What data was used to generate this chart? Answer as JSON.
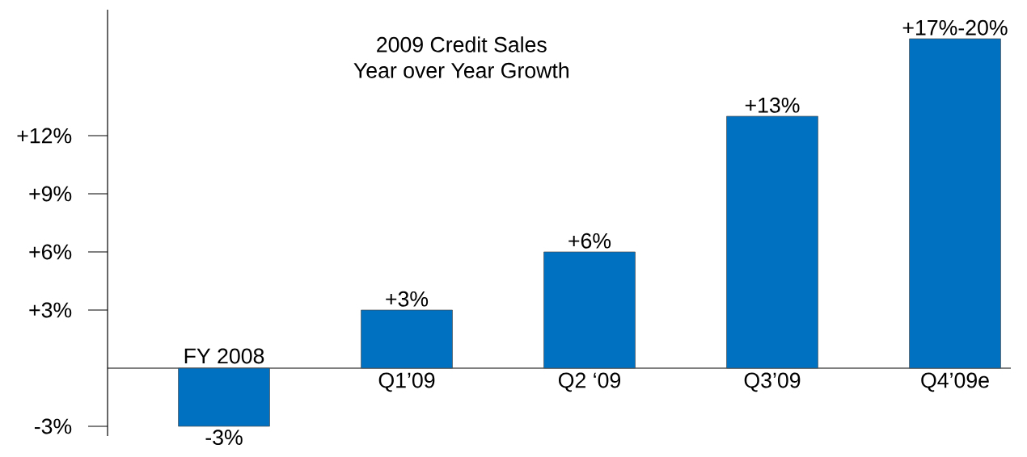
{
  "chart_data": {
    "type": "bar",
    "title": "2009 Credit Sales",
    "subtitle": "Year over Year Growth",
    "categories": [
      "FY 2008",
      "Q1’09",
      "Q2 ‘09",
      "Q3’09",
      "Q4’09e"
    ],
    "values": [
      -3,
      3,
      6,
      13,
      17
    ],
    "value_labels": [
      "-3%",
      "+3%",
      "+6%",
      "+13%",
      "+17%-20%"
    ],
    "color": "#0070c0",
    "ylim": [
      -3.5,
      18.5
    ],
    "yticks": [
      {
        "value": -3,
        "label": "-3%"
      },
      {
        "value": 3,
        "label": "+3%"
      },
      {
        "value": 6,
        "label": "+6%"
      },
      {
        "value": 9,
        "label": "+9%"
      },
      {
        "value": 12,
        "label": "+12%"
      }
    ]
  }
}
